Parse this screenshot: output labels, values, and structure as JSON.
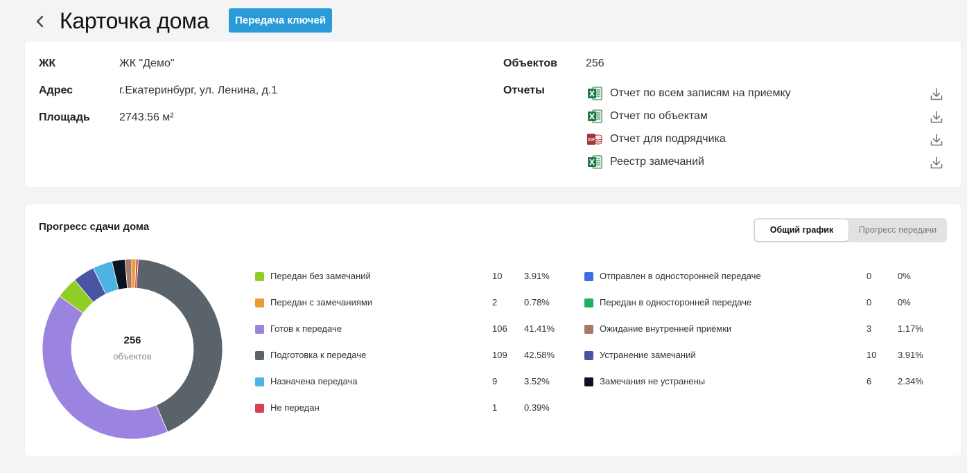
{
  "header": {
    "title": "Карточка дома",
    "badge": "Передача ключей",
    "badge_color": "#2a9bd8",
    "back_icon": "chevron-left-icon"
  },
  "info": {
    "complex_label": "ЖК",
    "complex_value": "ЖК \"Демо\"",
    "address_label": "Адрес",
    "address_value": "г.Екатеринбург, ул. Ленина, д.1",
    "area_label": "Площадь",
    "area_value": "2743.56 м²",
    "objects_label": "Объектов",
    "objects_value": "256",
    "reports_label": "Отчеты",
    "reports": [
      {
        "label": "Отчет по всем записям на приемку",
        "icon": "excel-file-icon"
      },
      {
        "label": "Отчет по объектам",
        "icon": "excel-file-icon"
      },
      {
        "label": "Отчет для подрядчика",
        "icon": "zip-archive-icon"
      },
      {
        "label": "Реестр замечаний",
        "icon": "excel-file-icon"
      }
    ]
  },
  "progress": {
    "title": "Прогресс сдачи дома",
    "toggle": {
      "active": "Общий график",
      "inactive": "Прогресс передачи"
    },
    "total": "256",
    "total_unit": "объектов"
  },
  "chart_data": {
    "type": "pie",
    "donut": true,
    "total": 256,
    "series": [
      {
        "name": "Передан без замечаний",
        "count": 10,
        "percent": "3.91%",
        "color": "#8fcf25"
      },
      {
        "name": "Передан с замечаниями",
        "count": 2,
        "percent": "0.78%",
        "color": "#ed9a35"
      },
      {
        "name": "Готов к передаче",
        "count": 106,
        "percent": "41.41%",
        "color": "#9a84e0"
      },
      {
        "name": "Подготовка к передаче",
        "count": 109,
        "percent": "42.58%",
        "color": "#596369"
      },
      {
        "name": "Назначена передача",
        "count": 9,
        "percent": "3.52%",
        "color": "#4cb3e3"
      },
      {
        "name": "Не передан",
        "count": 1,
        "percent": "0.39%",
        "color": "#d9414e"
      },
      {
        "name": "Отправлен в односторонней передаче",
        "count": 0,
        "percent": "0%",
        "color": "#3b6fe8"
      },
      {
        "name": "Передан в односторонней передаче",
        "count": 0,
        "percent": "0%",
        "color": "#1cb160"
      },
      {
        "name": "Ожидание внутренней приёмки",
        "count": 3,
        "percent": "1.17%",
        "color": "#a8786a"
      },
      {
        "name": "Устранение замечаний",
        "count": 10,
        "percent": "3.91%",
        "color": "#4a55a2"
      },
      {
        "name": "Замечания не устранены",
        "count": 6,
        "percent": "2.34%",
        "color": "#0d1421"
      }
    ],
    "donut_order": [
      3,
      2,
      0,
      9,
      4,
      10,
      8,
      1,
      5
    ]
  }
}
